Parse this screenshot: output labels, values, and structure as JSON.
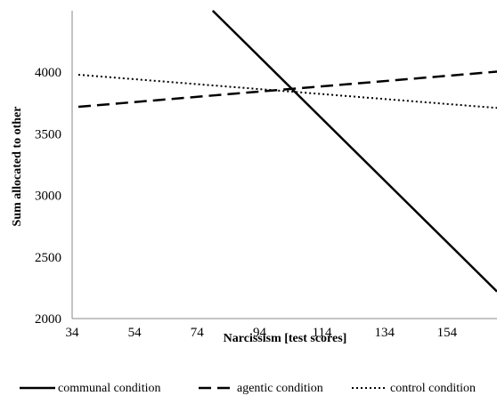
{
  "chart_data": {
    "type": "line",
    "title": "",
    "xlabel": "Narcissism [test scores]",
    "ylabel": "Sum allocated to other",
    "xlim": [
      34,
      170
    ],
    "ylim": [
      2000,
      4500
    ],
    "x_ticks": [
      "34",
      "54",
      "74",
      "94",
      "114",
      "134",
      "154"
    ],
    "y_ticks": [
      "2000",
      "2500",
      "3000",
      "3500",
      "4000"
    ],
    "grid": false,
    "legend_position": "bottom",
    "series": [
      {
        "name": "communal condition",
        "style": "solid",
        "color": "#000000",
        "x": [
          79,
          170
        ],
        "y": [
          4500,
          2220
        ]
      },
      {
        "name": "agentic condition",
        "style": "dashed",
        "color": "#000000",
        "x": [
          36,
          170
        ],
        "y": [
          3720,
          4005
        ]
      },
      {
        "name": "control condition",
        "style": "dotted",
        "color": "#000000",
        "x": [
          36,
          170
        ],
        "y": [
          3980,
          3710
        ]
      }
    ]
  }
}
